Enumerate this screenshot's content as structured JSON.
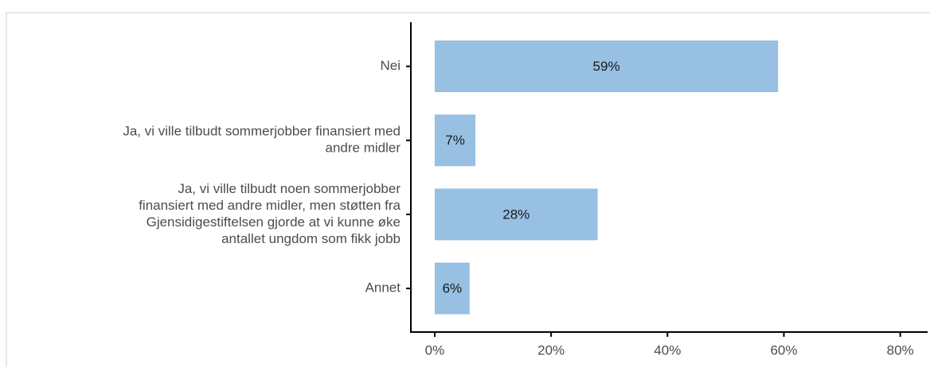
{
  "chart_data": {
    "type": "bar",
    "orientation": "horizontal",
    "categories": [
      "Nei",
      [
        "Ja, vi ville tilbudt sommerjobber finansiert med",
        "andre midler"
      ],
      [
        "Ja, vi ville tilbudt noen sommerjobber",
        "finansiert med andre midler, men støtten fra",
        "Gjensidigestiftelsen gjorde at vi kunne øke",
        "antallet ungdom som fikk jobb"
      ],
      "Annet"
    ],
    "values": [
      59,
      7,
      28,
      6
    ],
    "value_labels": [
      "59%",
      "7%",
      "28%",
      "6%"
    ],
    "color": "#97c0e2",
    "xlim": [
      -4.1,
      84.7
    ],
    "xticks": [
      {
        "value": 0,
        "label": "0%"
      },
      {
        "value": 20,
        "label": "20%"
      },
      {
        "value": 40,
        "label": "40%"
      },
      {
        "value": 60,
        "label": "60%"
      },
      {
        "value": 80,
        "label": "80%"
      }
    ]
  }
}
